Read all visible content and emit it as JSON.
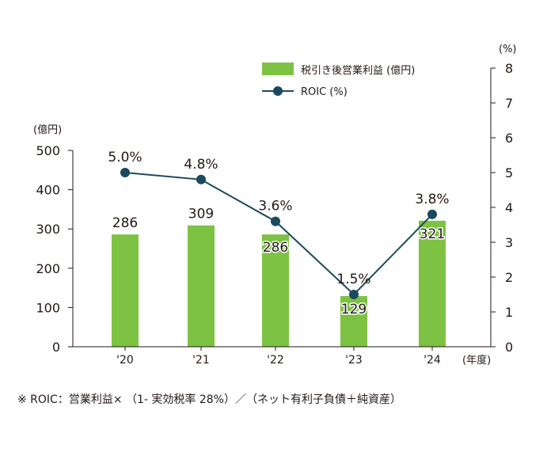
{
  "chart_data": {
    "type": "bar+line",
    "categories": [
      "'20",
      "'21",
      "'22",
      "'23",
      "'24"
    ],
    "x_unit": "(年度)",
    "left_axis": {
      "unit": "(億円)",
      "ylim": [
        0,
        500
      ],
      "ticks": [
        0,
        100,
        200,
        300,
        400,
        500
      ]
    },
    "right_axis": {
      "unit": "(%)",
      "ylim": [
        0,
        8
      ],
      "ticks": [
        0,
        1,
        2,
        3,
        4,
        5,
        6,
        7,
        8
      ]
    },
    "series": [
      {
        "name": "税引き後営業利益 (億円)",
        "kind": "bar",
        "axis": "left",
        "color": "#7dc242",
        "values": [
          286,
          309,
          286,
          129,
          321
        ],
        "labels": [
          "286",
          "309",
          "286",
          "129",
          "321"
        ]
      },
      {
        "name": "ROIC (%)",
        "kind": "line",
        "axis": "right",
        "color": "#1b4a5c",
        "values": [
          5.0,
          4.8,
          3.6,
          1.5,
          3.8
        ],
        "labels": [
          "5.0%",
          "4.8%",
          "3.6%",
          "1.5%",
          "3.8%"
        ]
      }
    ],
    "legend_position": "top-right",
    "footnote": "※ ROIC：営業利益× （1- 実効税率 28%）／（ネット有利子負債＋純資産）"
  }
}
